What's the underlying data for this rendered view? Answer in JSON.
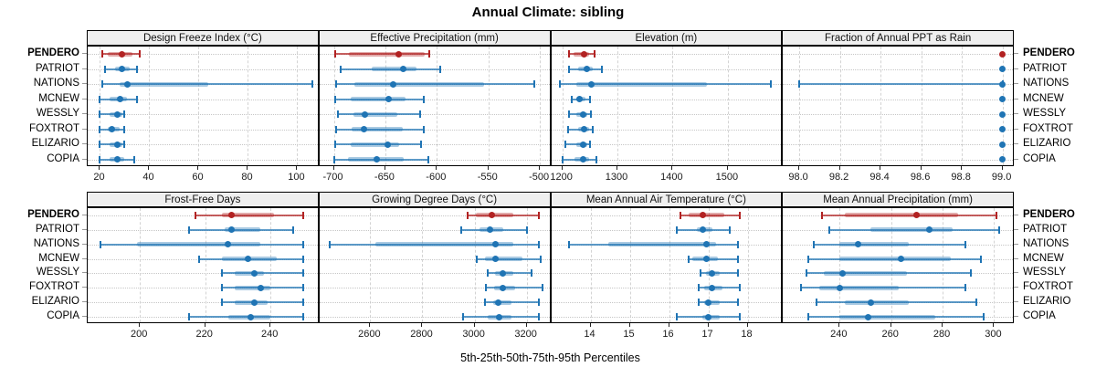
{
  "title": "Annual Climate: sibling",
  "axis_label": "5th-25th-50th-75th-95th Percentiles",
  "sites": [
    "PENDERO",
    "PATRIOT",
    "NATIONS",
    "MCNEW",
    "WESSLY",
    "FOXTROT",
    "ELIZARIO",
    "COPIA"
  ],
  "highlight_site": "PENDERO",
  "colors": {
    "highlight": "#B22222",
    "normal": "#1F74B4",
    "strip_bg": "#EFEFEF",
    "grid": "#D3D3D3"
  },
  "percentiles": [
    5,
    25,
    50,
    75,
    95
  ],
  "chart_data": [
    {
      "type": "dot-whisker",
      "title": "Design Freeze Index (°C)",
      "row": 1,
      "domain": [
        15,
        109
      ],
      "tick_values": [
        20,
        40,
        60,
        80,
        100
      ],
      "tick_labels": [
        "20",
        "40",
        "60",
        "80",
        "100"
      ],
      "series": [
        {
          "name": "PENDERO",
          "values": [
            21,
            23,
            29,
            33,
            36
          ]
        },
        {
          "name": "PATRIOT",
          "values": [
            22,
            26,
            29,
            32,
            35
          ]
        },
        {
          "name": "NATIONS",
          "values": [
            21,
            28,
            31,
            64,
            106
          ]
        },
        {
          "name": "MCNEW",
          "values": [
            20,
            24,
            28,
            31,
            35
          ]
        },
        {
          "name": "WESSLY",
          "values": [
            20,
            24,
            27,
            29,
            30
          ]
        },
        {
          "name": "FOXTROT",
          "values": [
            20,
            23,
            25,
            28,
            30
          ]
        },
        {
          "name": "ELIZARIO",
          "values": [
            20,
            24,
            27,
            29,
            30
          ]
        },
        {
          "name": "COPIA",
          "values": [
            20,
            24,
            27,
            30,
            34
          ]
        }
      ]
    },
    {
      "type": "dot-whisker",
      "title": "Effective Precipitation (mm)",
      "row": 1,
      "domain": [
        -714,
        -489
      ],
      "tick_values": [
        -700,
        -650,
        -600,
        -550,
        -500
      ],
      "tick_labels": [
        "-700",
        "-650",
        "-600",
        "-550",
        "-500"
      ],
      "series": [
        {
          "name": "PENDERO",
          "values": [
            -699,
            -685,
            -637,
            -612,
            -607
          ]
        },
        {
          "name": "PATRIOT",
          "values": [
            -693,
            -663,
            -633,
            -620,
            -597
          ]
        },
        {
          "name": "NATIONS",
          "values": [
            -698,
            -680,
            -642,
            -554,
            -505
          ]
        },
        {
          "name": "MCNEW",
          "values": [
            -699,
            -684,
            -647,
            -630,
            -613
          ]
        },
        {
          "name": "WESSLY",
          "values": [
            -696,
            -681,
            -670,
            -638,
            -616
          ]
        },
        {
          "name": "FOXTROT",
          "values": [
            -698,
            -683,
            -671,
            -633,
            -613
          ]
        },
        {
          "name": "ELIZARIO",
          "values": [
            -699,
            -684,
            -648,
            -637,
            -615
          ]
        },
        {
          "name": "COPIA",
          "values": [
            -700,
            -686,
            -658,
            -632,
            -608
          ]
        }
      ]
    },
    {
      "type": "dot-whisker",
      "title": "Elevation (m)",
      "row": 1,
      "domain": [
        1180,
        1600
      ],
      "tick_values": [
        1200,
        1300,
        1400,
        1500
      ],
      "tick_labels": [
        "1200",
        "1300",
        "1400",
        "1500"
      ],
      "series": [
        {
          "name": "PENDERO",
          "values": [
            1213,
            1220,
            1240,
            1248,
            1258
          ]
        },
        {
          "name": "PATRIOT",
          "values": [
            1212,
            1228,
            1245,
            1255,
            1272
          ]
        },
        {
          "name": "NATIONS",
          "values": [
            1195,
            1225,
            1253,
            1462,
            1578
          ]
        },
        {
          "name": "MCNEW",
          "values": [
            1218,
            1225,
            1232,
            1242,
            1250
          ]
        },
        {
          "name": "WESSLY",
          "values": [
            1212,
            1225,
            1238,
            1246,
            1252
          ]
        },
        {
          "name": "FOXTROT",
          "values": [
            1210,
            1228,
            1240,
            1248,
            1255
          ]
        },
        {
          "name": "ELIZARIO",
          "values": [
            1205,
            1225,
            1238,
            1245,
            1250
          ]
        },
        {
          "name": "COPIA",
          "values": [
            1200,
            1222,
            1238,
            1248,
            1262
          ]
        }
      ]
    },
    {
      "type": "dot-whisker",
      "title": "Fraction of Annual PPT as Rain",
      "row": 1,
      "domain": [
        97.92,
        99.06
      ],
      "tick_values": [
        98.0,
        98.2,
        98.4,
        98.6,
        98.8,
        99.0
      ],
      "tick_labels": [
        "98.0",
        "98.2",
        "98.4",
        "98.6",
        "98.8",
        "99.0"
      ],
      "series": [
        {
          "name": "PENDERO",
          "values": [
            99.0,
            99.0,
            99.0,
            99.0,
            99.0
          ]
        },
        {
          "name": "PATRIOT",
          "values": [
            99.0,
            99.0,
            99.0,
            99.0,
            99.0
          ]
        },
        {
          "name": "NATIONS",
          "values": [
            98.0,
            99.0,
            99.0,
            99.0,
            99.0
          ]
        },
        {
          "name": "MCNEW",
          "values": [
            99.0,
            99.0,
            99.0,
            99.0,
            99.0
          ]
        },
        {
          "name": "WESSLY",
          "values": [
            99.0,
            99.0,
            99.0,
            99.0,
            99.0
          ]
        },
        {
          "name": "FOXTROT",
          "values": [
            99.0,
            99.0,
            99.0,
            99.0,
            99.0
          ]
        },
        {
          "name": "ELIZARIO",
          "values": [
            99.0,
            99.0,
            99.0,
            99.0,
            99.0
          ]
        },
        {
          "name": "COPIA",
          "values": [
            99.0,
            99.0,
            99.0,
            99.0,
            99.0
          ]
        }
      ]
    },
    {
      "type": "dot-whisker",
      "title": "Frost-Free Days",
      "row": 2,
      "domain": [
        184,
        255
      ],
      "tick_values": [
        200,
        220,
        240
      ],
      "tick_labels": [
        "200",
        "220",
        "240"
      ],
      "series": [
        {
          "name": "PENDERO",
          "values": [
            217,
            225,
            228,
            241,
            250
          ]
        },
        {
          "name": "PATRIOT",
          "values": [
            215,
            226,
            228,
            237,
            247
          ]
        },
        {
          "name": "NATIONS",
          "values": [
            188,
            199,
            227,
            237,
            250
          ]
        },
        {
          "name": "MCNEW",
          "values": [
            218,
            225,
            233,
            242,
            250
          ]
        },
        {
          "name": "WESSLY",
          "values": [
            225,
            229,
            235,
            238,
            250
          ]
        },
        {
          "name": "FOXTROT",
          "values": [
            225,
            229,
            237,
            240,
            250
          ]
        },
        {
          "name": "ELIZARIO",
          "values": [
            225,
            229,
            235,
            239,
            250
          ]
        },
        {
          "name": "COPIA",
          "values": [
            215,
            227,
            234,
            240,
            250
          ]
        }
      ]
    },
    {
      "type": "dot-whisker",
      "title": "Growing Degree Days (°C)",
      "row": 2,
      "domain": [
        2405,
        3294
      ],
      "tick_values": [
        2600,
        2800,
        3000,
        3200
      ],
      "tick_labels": [
        "2600",
        "2800",
        "3000",
        "3200"
      ],
      "series": [
        {
          "name": "PENDERO",
          "values": [
            2975,
            3005,
            3065,
            3150,
            3245
          ]
        },
        {
          "name": "PATRIOT",
          "values": [
            2950,
            3020,
            3060,
            3110,
            3200
          ]
        },
        {
          "name": "NATIONS",
          "values": [
            2445,
            2620,
            3080,
            3150,
            3245
          ]
        },
        {
          "name": "MCNEW",
          "values": [
            3010,
            3040,
            3080,
            3185,
            3255
          ]
        },
        {
          "name": "WESSLY",
          "values": [
            3050,
            3080,
            3110,
            3150,
            3220
          ]
        },
        {
          "name": "FOXTROT",
          "values": [
            3045,
            3075,
            3110,
            3155,
            3260
          ]
        },
        {
          "name": "ELIZARIO",
          "values": [
            3040,
            3070,
            3090,
            3140,
            3245
          ]
        },
        {
          "name": "COPIA",
          "values": [
            2955,
            3050,
            3095,
            3140,
            3245
          ]
        }
      ]
    },
    {
      "type": "dot-whisker",
      "title": "Mean Annual Air Temperature (°C)",
      "row": 2,
      "domain": [
        13.0,
        18.9
      ],
      "tick_values": [
        14,
        15,
        16,
        17,
        18
      ],
      "tick_labels": [
        "14",
        "15",
        "16",
        "17",
        "18"
      ],
      "series": [
        {
          "name": "PENDERO",
          "values": [
            16.3,
            16.5,
            16.85,
            17.4,
            17.8
          ]
        },
        {
          "name": "PATRIOT",
          "values": [
            16.2,
            16.7,
            16.85,
            17.1,
            17.55
          ]
        },
        {
          "name": "NATIONS",
          "values": [
            13.45,
            14.45,
            16.95,
            17.2,
            17.75
          ]
        },
        {
          "name": "MCNEW",
          "values": [
            16.5,
            16.6,
            16.95,
            17.25,
            17.75
          ]
        },
        {
          "name": "WESSLY",
          "values": [
            16.8,
            16.95,
            17.1,
            17.3,
            17.75
          ]
        },
        {
          "name": "FOXTROT",
          "values": [
            16.75,
            16.9,
            17.1,
            17.35,
            17.8
          ]
        },
        {
          "name": "ELIZARIO",
          "values": [
            16.75,
            16.9,
            17.0,
            17.3,
            17.75
          ]
        },
        {
          "name": "COPIA",
          "values": [
            16.2,
            16.85,
            17.0,
            17.3,
            17.8
          ]
        }
      ]
    },
    {
      "type": "dot-whisker",
      "title": "Mean Annual Precipitation (mm)",
      "row": 2,
      "domain": [
        218,
        308
      ],
      "tick_values": [
        240,
        260,
        280,
        300
      ],
      "tick_labels": [
        "240",
        "260",
        "280",
        "300"
      ],
      "series": [
        {
          "name": "PENDERO",
          "values": [
            233,
            242,
            270,
            286,
            301
          ]
        },
        {
          "name": "PATRIOT",
          "values": [
            236,
            252,
            275,
            284,
            302
          ]
        },
        {
          "name": "NATIONS",
          "values": [
            230,
            240,
            247,
            267,
            289
          ]
        },
        {
          "name": "MCNEW",
          "values": [
            228,
            240,
            264,
            283,
            295
          ]
        },
        {
          "name": "WESSLY",
          "values": [
            227,
            234,
            241,
            266,
            291
          ]
        },
        {
          "name": "FOXTROT",
          "values": [
            225,
            232,
            240,
            263,
            289
          ]
        },
        {
          "name": "ELIZARIO",
          "values": [
            231,
            242,
            252,
            267,
            293
          ]
        },
        {
          "name": "COPIA",
          "values": [
            228,
            240,
            251,
            277,
            296
          ]
        }
      ]
    }
  ]
}
